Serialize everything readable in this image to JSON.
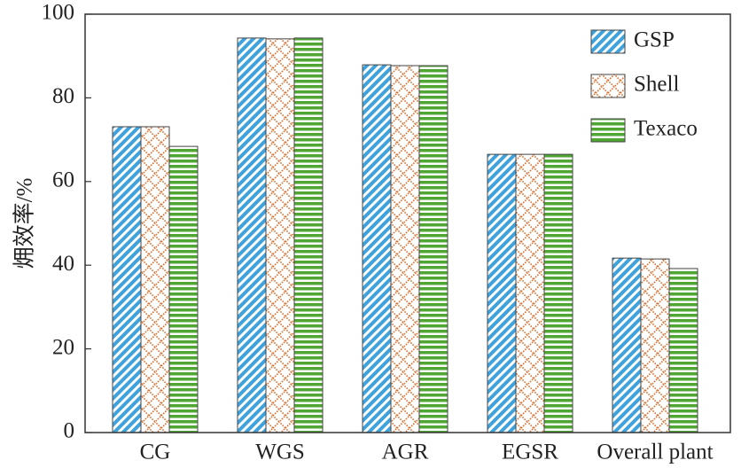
{
  "chart_data": {
    "type": "bar",
    "y_label": "㶲效率/%",
    "categories": [
      "CG",
      "WGS",
      "AGR",
      "EGSR",
      "Overall plant"
    ],
    "series": [
      {
        "name": "GSP",
        "color": "#3fa2dc",
        "values": [
          73.1,
          94.3,
          87.9,
          66.5,
          41.7
        ]
      },
      {
        "name": "Shell",
        "color": "#d6702f",
        "values": [
          73.1,
          94.1,
          87.7,
          66.5,
          41.5
        ]
      },
      {
        "name": "Texaco",
        "color": "#4fa633",
        "values": [
          68.4,
          94.3,
          87.7,
          66.5,
          39.2
        ]
      }
    ],
    "ylim": [
      0,
      100
    ],
    "yticks": [
      0,
      20,
      40,
      60,
      80,
      100
    ],
    "legend": "upper right"
  }
}
